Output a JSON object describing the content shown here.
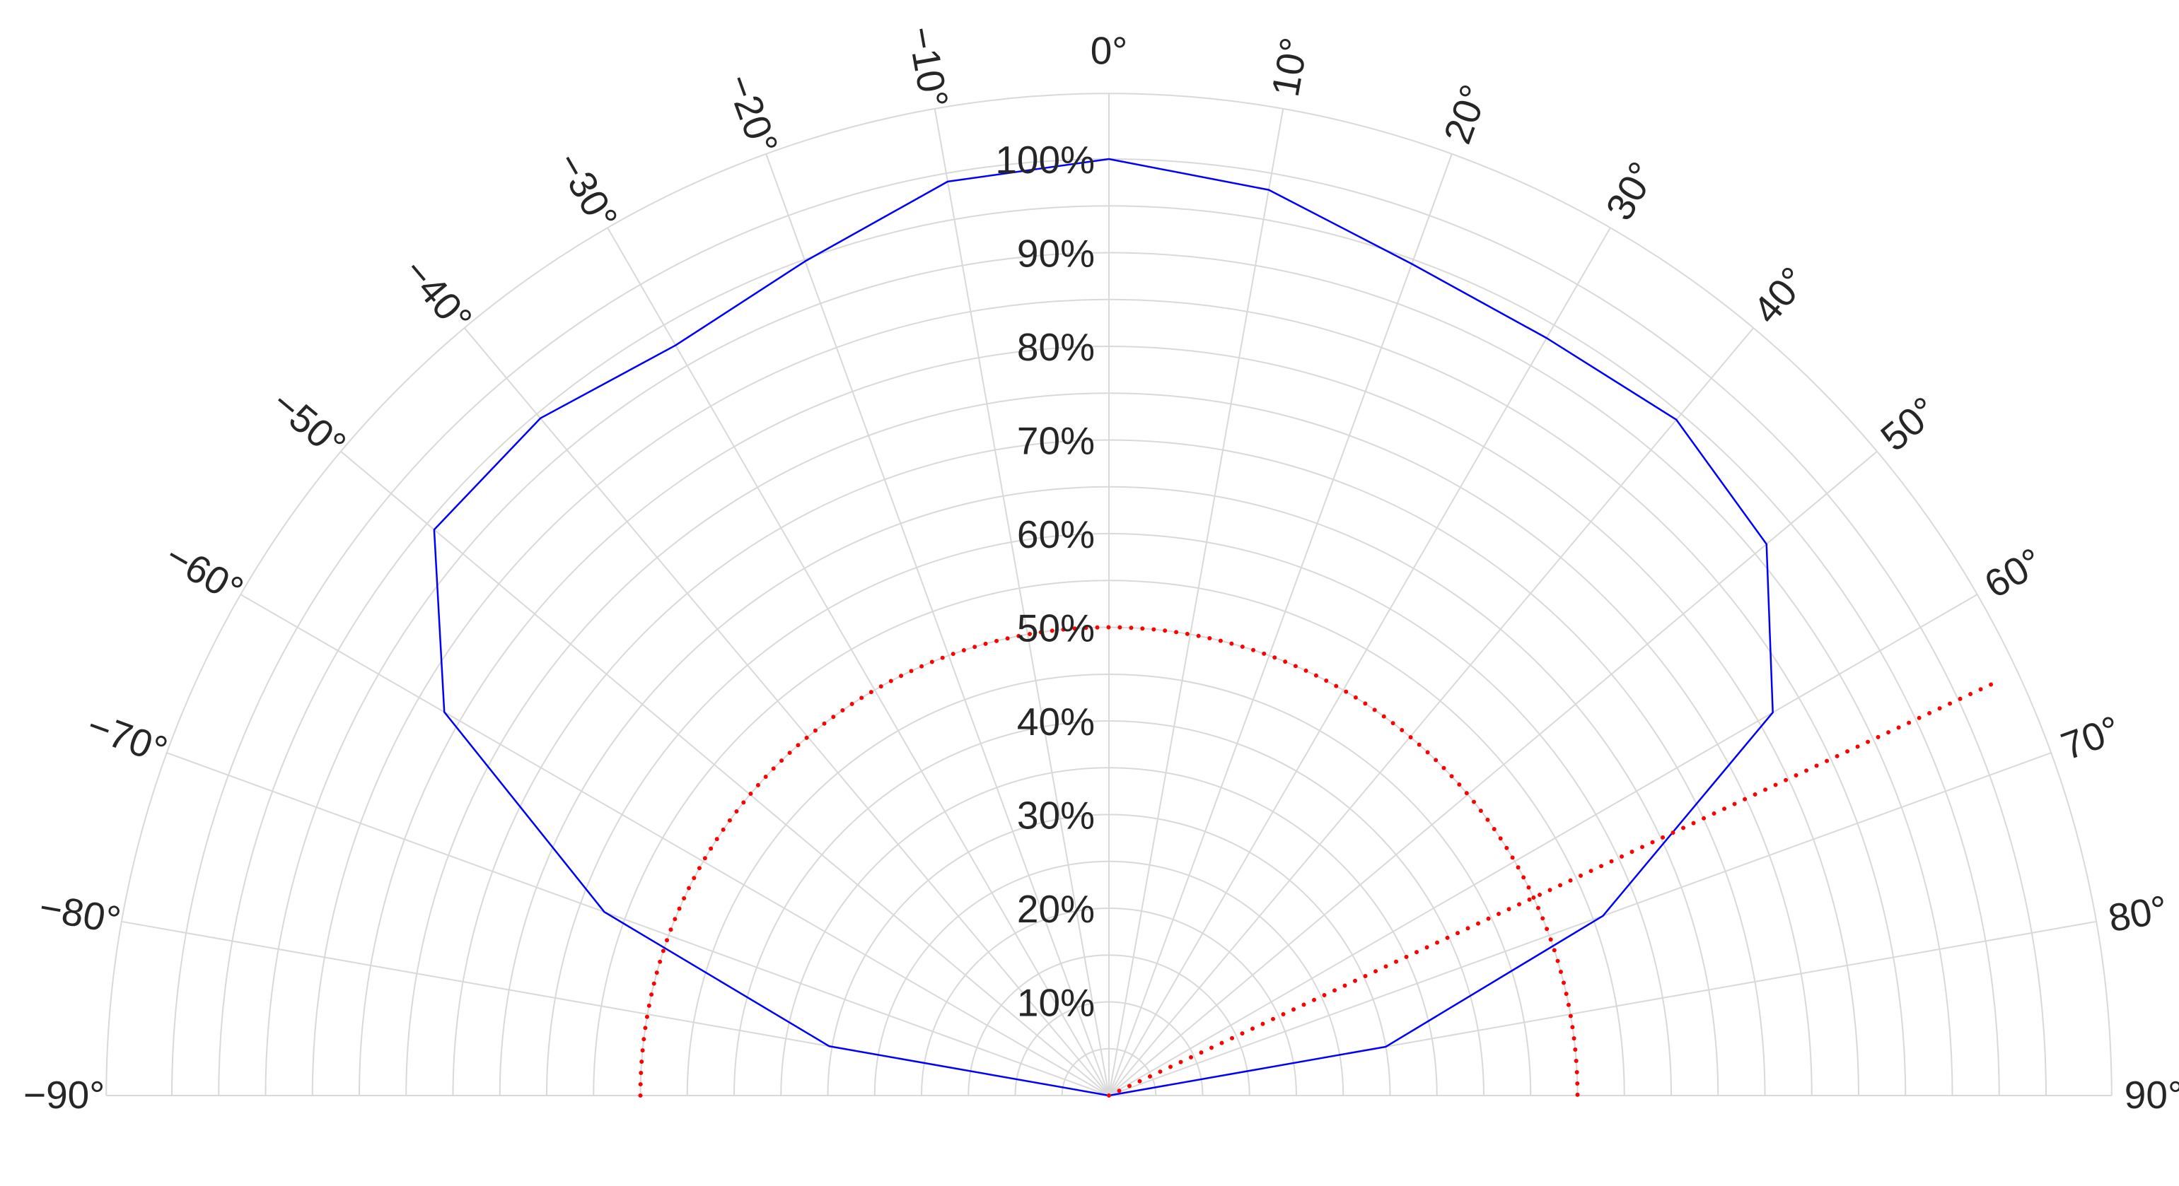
{
  "chart_data": {
    "type": "polar",
    "title": "",
    "theta_range_deg": [
      -90,
      90
    ],
    "theta_direction": "clockwise-from-top",
    "r_range": [
      0,
      107
    ],
    "radial_ticks": [
      10,
      20,
      30,
      40,
      50,
      60,
      70,
      80,
      90,
      100
    ],
    "radial_tick_labels": [
      "10%",
      "20%",
      "30%",
      "40%",
      "50%",
      "60%",
      "70%",
      "80%",
      "90%",
      "100%"
    ],
    "angle_ticks": [
      -90,
      -80,
      -70,
      -60,
      -50,
      -40,
      -30,
      -20,
      -10,
      0,
      10,
      20,
      30,
      40,
      50,
      60,
      70,
      80,
      90
    ],
    "angle_tick_labels": [
      "−90°",
      "−80°",
      "−70°",
      "−60°",
      "−50°",
      "−40°",
      "−30°",
      "−20°",
      "−10°",
      "0°",
      "10°",
      "20°",
      "30°",
      "40°",
      "50°",
      "60°",
      "70°",
      "80°",
      "90°"
    ],
    "grid": true,
    "series": [
      {
        "style": "solid",
        "color": "#0000ff",
        "theta": [
          -90,
          -80,
          -70,
          -60,
          -50,
          -40,
          -30,
          -20,
          -10,
          0,
          10,
          20,
          30,
          40,
          50,
          60,
          70,
          80,
          90
        ],
        "r": [
          0,
          30.3,
          57.3,
          81.9,
          94.0,
          94.4,
          92.5,
          94.8,
          99.1,
          100,
          98.2,
          94.5,
          93.4,
          94.2,
          91.6,
          81.8,
          56.1,
          30.0,
          0
        ]
      },
      {
        "style": "dotted",
        "color": "#ff0000",
        "shape": "arc",
        "r": 50,
        "theta_range": [
          -90,
          90
        ]
      },
      {
        "style": "dotted",
        "color": "#ff0000",
        "shape": "ray",
        "theta": 65,
        "r_range": [
          0,
          104.5
        ]
      }
    ]
  }
}
